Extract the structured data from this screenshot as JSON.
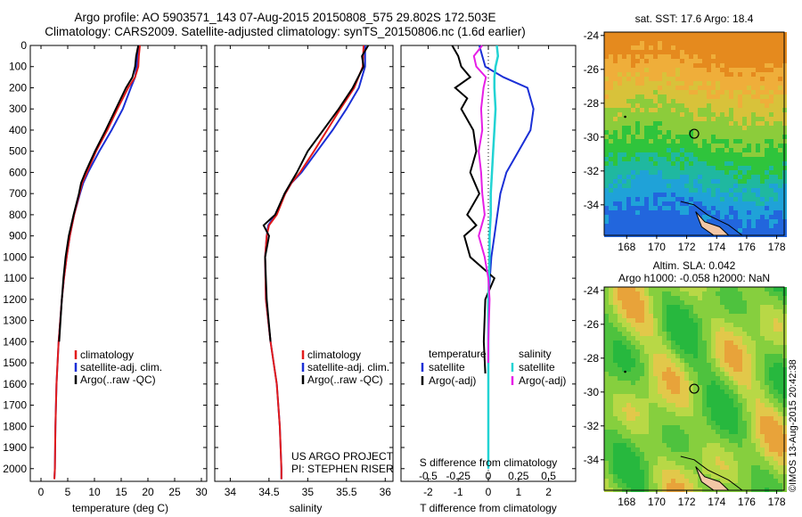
{
  "header": {
    "line1": "Argo profile: AO 5903571_143 07-Aug-2015 20150808_575 29.802S 172.503E",
    "line2": "Climatology: CARS2009. Satellite-adjusted climatology: synTS_20150806.nc (1.6d earlier)"
  },
  "colors": {
    "climatology": "#e21b1b",
    "satellite": "#1a2fd6",
    "argo": "#000000",
    "sal_satellite": "#22d3d3",
    "sal_argo": "#e61ee6"
  },
  "depth_axis": {
    "ticks": [
      0,
      100,
      200,
      300,
      400,
      500,
      600,
      700,
      800,
      900,
      1000,
      1100,
      1200,
      1300,
      1400,
      1500,
      1600,
      1700,
      1800,
      1900,
      2000
    ],
    "ylim": [
      0,
      2060
    ]
  },
  "legend": {
    "climatology": "climatology",
    "satellite": "satellite-adj. clim.",
    "argo": "Argo(..raw -QC)"
  },
  "project": {
    "line1": "US ARGO PROJECT",
    "line2": "PI: STEPHEN RISER"
  },
  "diff_legend": {
    "temperature": "temperature",
    "salinity": "salinity",
    "satellite": "satellite",
    "argo_t": "Argo(-adj)",
    "argo_s": "Argo(-adj)"
  },
  "diff_axis": {
    "s_title": "S difference from climatology",
    "t_title": "T difference from climatology",
    "s_ticks": [
      "-0.5",
      "-0.25",
      "0",
      "0.25",
      "0.5"
    ],
    "t_ticks": [
      "-2",
      "-1",
      "0",
      "1",
      "2"
    ]
  },
  "maps": {
    "sst_title": "sat. SST: 17.6 Argo: 18.4",
    "sla_title1": "Altim. SLA: 0.042",
    "sla_title2": "Argo h1000: -0.058 h2000: NaN",
    "lat_ticks": [
      "-24",
      "-26",
      "-28",
      "-30",
      "-32",
      "-34"
    ],
    "lon_ticks": [
      "168",
      "170",
      "172",
      "174",
      "176",
      "178"
    ]
  },
  "credit": "©IMOS 13-Aug-2015 20:42:38",
  "chart_data": [
    {
      "type": "line",
      "xlabel": "temperature (deg C)",
      "xticks": [
        0,
        5,
        10,
        15,
        20,
        25,
        30
      ],
      "xlim": [
        -2,
        31
      ],
      "series": [
        {
          "name": "climatology",
          "depth": [
            0,
            50,
            100,
            150,
            200,
            300,
            400,
            500,
            600,
            650,
            700,
            800,
            900,
            1000,
            1100,
            1200,
            1400,
            1600,
            1800,
            2000,
            2050
          ],
          "values": [
            18.5,
            18.3,
            18.2,
            17.6,
            16.3,
            14.3,
            12.4,
            10.3,
            8.6,
            7.7,
            7.2,
            6.2,
            5.4,
            4.8,
            4.3,
            3.9,
            3.3,
            2.9,
            2.7,
            2.6,
            2.5
          ]
        },
        {
          "name": "satellite-adj. clim.",
          "depth": [
            0,
            50,
            100,
            150,
            200,
            300,
            400,
            500,
            600,
            650,
            700,
            800,
            900,
            1000,
            1100,
            1200,
            1400,
            1600,
            1800,
            2000,
            2050
          ],
          "values": [
            18.2,
            18.0,
            17.9,
            17.6,
            16.8,
            15.3,
            13.2,
            10.9,
            8.8,
            7.9,
            7.3,
            6.2,
            5.4,
            4.8,
            4.3,
            3.9,
            3.3,
            2.9,
            2.7,
            2.6,
            2.5
          ]
        },
        {
          "name": "Argo(..raw -QC)",
          "depth": [
            0,
            50,
            100,
            150,
            200,
            300,
            400,
            500,
            600,
            650,
            700,
            800,
            900,
            1000,
            1100,
            1200,
            1400
          ],
          "values": [
            18.2,
            17.8,
            17.6,
            17.1,
            15.9,
            14.0,
            12.1,
            10.1,
            8.3,
            7.5,
            7.1,
            6.1,
            5.2,
            4.6,
            4.2,
            3.9,
            3.4
          ]
        }
      ]
    },
    {
      "type": "line",
      "xlabel": "salinity",
      "xticks": [
        34,
        34.5,
        35,
        35.5,
        36
      ],
      "xlim": [
        33.8,
        36.1
      ],
      "series": [
        {
          "name": "climatology",
          "depth": [
            0,
            100,
            200,
            300,
            400,
            500,
            600,
            650,
            700,
            800,
            850,
            900,
            1000,
            1200,
            1400,
            1600,
            1800,
            2000,
            2050
          ],
          "values": [
            35.72,
            35.71,
            35.6,
            35.42,
            35.25,
            35.08,
            34.9,
            34.79,
            34.71,
            34.6,
            34.5,
            34.47,
            34.45,
            34.46,
            34.52,
            34.6,
            34.64,
            34.66,
            34.66
          ]
        },
        {
          "name": "satellite-adj. clim.",
          "depth": [
            0,
            100,
            200,
            300,
            400,
            500,
            600,
            650,
            700,
            800,
            850,
            900,
            1000,
            1200,
            1400,
            1600,
            1800,
            2000,
            2050
          ],
          "values": [
            35.74,
            35.74,
            35.66,
            35.5,
            35.32,
            35.12,
            34.92,
            34.79,
            34.71,
            34.58,
            34.49,
            34.47,
            34.45,
            34.46,
            34.52,
            34.6,
            34.64,
            34.66,
            34.66
          ]
        },
        {
          "name": "Argo(..raw -QC)",
          "depth": [
            0,
            50,
            100,
            150,
            200,
            300,
            400,
            500,
            600,
            650,
            700,
            800,
            850,
            900,
            1000,
            1100,
            1200,
            1400
          ],
          "values": [
            35.78,
            35.7,
            35.72,
            35.65,
            35.58,
            35.4,
            35.2,
            35.0,
            34.86,
            34.78,
            34.7,
            34.58,
            34.43,
            34.5,
            34.45,
            34.46,
            34.47,
            34.52
          ]
        }
      ]
    },
    {
      "type": "line",
      "xlabel": "T difference from climatology",
      "xticks": [
        -2,
        -1,
        0,
        1,
        2
      ],
      "xlim": [
        -2.9,
        2.9
      ],
      "series": [
        {
          "name": "temperature satellite",
          "depth": [
            0,
            50,
            100,
            150,
            200,
            300,
            400,
            500,
            600,
            700,
            800,
            900,
            1000,
            1100,
            1200,
            1400,
            1600,
            1800,
            2000
          ],
          "values": [
            -0.3,
            -0.2,
            -0.1,
            0.5,
            1.3,
            1.5,
            1.4,
            1.0,
            0.6,
            0.4,
            0.3,
            0.2,
            0.1,
            0.05,
            0.0,
            0.0,
            0.0,
            0.0,
            0.0
          ]
        },
        {
          "name": "temperature Argo(-adj)",
          "depth": [
            0,
            50,
            100,
            150,
            200,
            250,
            300,
            400,
            500,
            600,
            700,
            800,
            850,
            900,
            1000,
            1100,
            1200,
            1400,
            1550
          ],
          "values": [
            -1.2,
            -1.0,
            -0.9,
            -0.6,
            -1.1,
            -0.7,
            -0.9,
            -0.5,
            -0.4,
            -0.6,
            -0.3,
            -0.7,
            -0.4,
            -0.8,
            -0.6,
            0.2,
            -0.1,
            -0.15,
            -0.1
          ]
        },
        {
          "name": "salinity satellite",
          "depth": [
            0,
            50,
            100,
            150,
            200,
            300,
            400,
            500,
            600,
            700,
            800,
            900,
            1000,
            1200,
            1400,
            1600,
            1800,
            2000
          ],
          "values": [
            0.07,
            0.08,
            0.06,
            0.05,
            0.05,
            0.06,
            0.05,
            0.04,
            0.03,
            0.02,
            0.02,
            0.01,
            0.01,
            0.0,
            0.0,
            0.0,
            0.0,
            0.0
          ]
        },
        {
          "name": "salinity Argo(-adj)",
          "depth": [
            0,
            50,
            100,
            150,
            200,
            300,
            400,
            500,
            600,
            700,
            800,
            900,
            1000,
            1100,
            1200,
            1400,
            1500
          ],
          "values": [
            -0.05,
            -0.12,
            -0.1,
            -0.02,
            -0.04,
            -0.06,
            -0.05,
            -0.08,
            -0.06,
            -0.05,
            -0.03,
            -0.08,
            -0.03,
            0.0,
            0.01,
            0.0,
            0.0
          ]
        }
      ]
    },
    {
      "type": "heatmap",
      "title": "sat. SST: 17.6 Argo: 18.4",
      "xlim": [
        166.5,
        178.5
      ],
      "ylim": [
        -35.8,
        -23.8
      ]
    },
    {
      "type": "heatmap",
      "title": "Altim. SLA: 0.042",
      "xlim": [
        166.5,
        178.5
      ],
      "ylim": [
        -35.8,
        -23.8
      ]
    }
  ]
}
